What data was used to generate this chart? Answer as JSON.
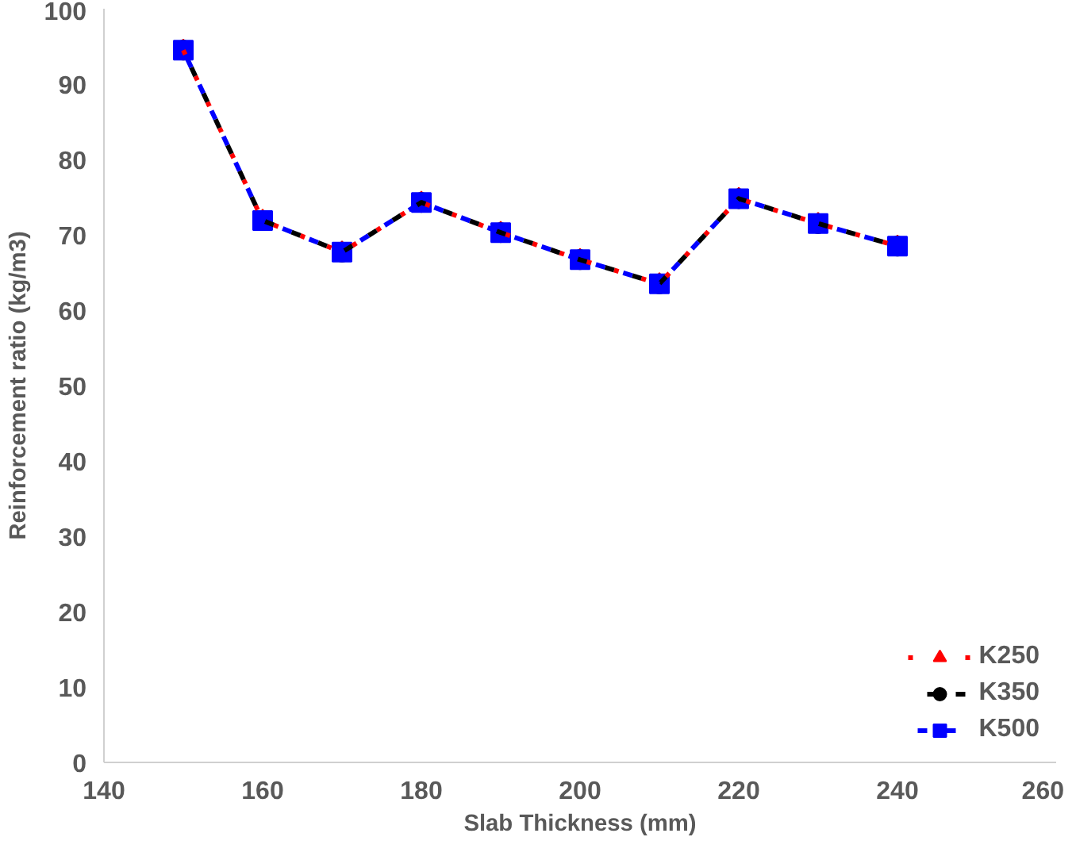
{
  "chart_data": {
    "type": "line",
    "xlabel": "Slab Thickness (mm)",
    "ylabel": "Reinforcement ratio (kg/m3)",
    "x": [
      150,
      160,
      170,
      180,
      190,
      200,
      210,
      220,
      230,
      240
    ],
    "series": [
      {
        "name": "K250",
        "color": "#ff0000",
        "marker": "triangle",
        "line_style": "dotted",
        "values": [
          94.5,
          71.9,
          67.7,
          74.3,
          70.3,
          66.7,
          63.5,
          74.8,
          71.5,
          68.5
        ]
      },
      {
        "name": "K350",
        "color": "#000000",
        "marker": "circle",
        "line_style": "dashed",
        "values": [
          94.5,
          71.9,
          67.7,
          74.3,
          70.3,
          66.7,
          63.5,
          74.8,
          71.5,
          68.5
        ]
      },
      {
        "name": "K500",
        "color": "#0000ff",
        "marker": "square",
        "line_style": "dashed",
        "values": [
          94.5,
          71.9,
          67.7,
          74.3,
          70.3,
          66.7,
          63.5,
          74.8,
          71.5,
          68.5
        ]
      }
    ],
    "xlim": [
      140,
      260
    ],
    "xticks": [
      140,
      160,
      180,
      200,
      220,
      240,
      260
    ],
    "ylim": [
      0,
      100
    ],
    "yticks": [
      0,
      10,
      20,
      30,
      40,
      50,
      60,
      70,
      80,
      90,
      100
    ],
    "grid": false,
    "legend": "bottom right"
  }
}
